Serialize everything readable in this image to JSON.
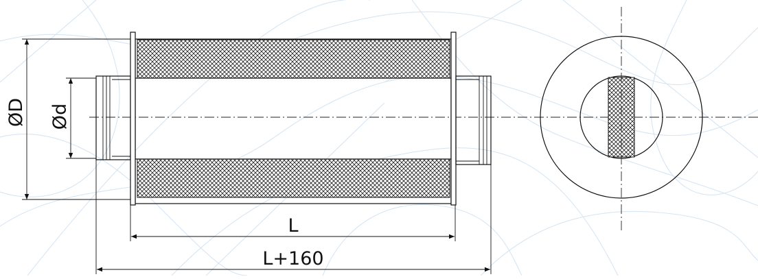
{
  "labels": {
    "outer_diameter": "ØD",
    "inner_diameter": "Ød",
    "length": "L",
    "total_length": "L+160"
  },
  "colors": {
    "line": "#111111",
    "watermark": "#d6e5f3",
    "background": "#ffffff"
  }
}
